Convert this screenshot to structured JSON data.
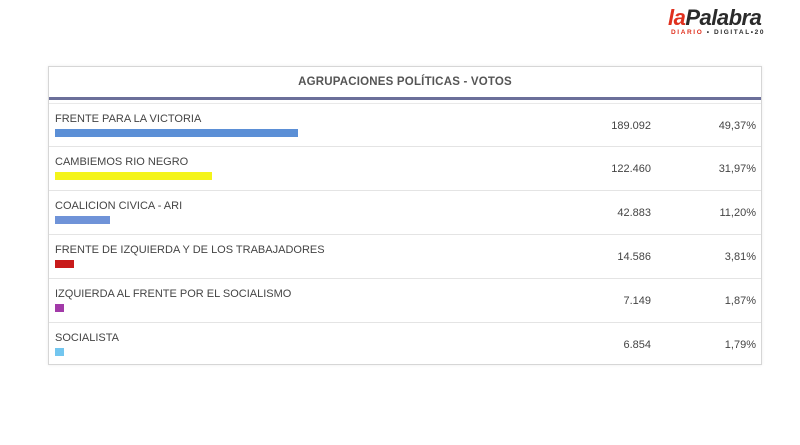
{
  "logo": {
    "word_la": "la",
    "word_palabra": "Palabra",
    "sub_red": "DIARIO",
    "sub_dark": "• DIGITAL",
    "sub_tail": "•20"
  },
  "table": {
    "header": "AGRUPACIONES POLÍTICAS - VOTOS"
  },
  "chart_data": {
    "type": "bar",
    "title": "AGRUPACIONES POLÍTICAS - VOTOS",
    "categories": [
      "FRENTE PARA LA VICTORIA",
      "CAMBIEMOS RIO NEGRO",
      "COALICION CIVICA - ARI",
      "FRENTE DE IZQUIERDA Y DE LOS TRABAJADORES",
      "IZQUIERDA AL FRENTE POR EL SOCIALISMO",
      "SOCIALISTA"
    ],
    "votes_text": [
      "189.092",
      "122.460",
      "42.883",
      "14.586",
      "7.149",
      "6.854"
    ],
    "values": [
      189092,
      122460,
      42883,
      14586,
      7149,
      6854
    ],
    "percent_text": [
      "49,37%",
      "31,97%",
      "11,20%",
      "3,81%",
      "1,87%",
      "1,79%"
    ],
    "percent": [
      49.37,
      31.97,
      11.2,
      3.81,
      1.87,
      1.79
    ],
    "colors": [
      "#5b8fd6",
      "#f4f41a",
      "#6f93d8",
      "#c81a1a",
      "#a23aa8",
      "#73c6ef"
    ]
  }
}
